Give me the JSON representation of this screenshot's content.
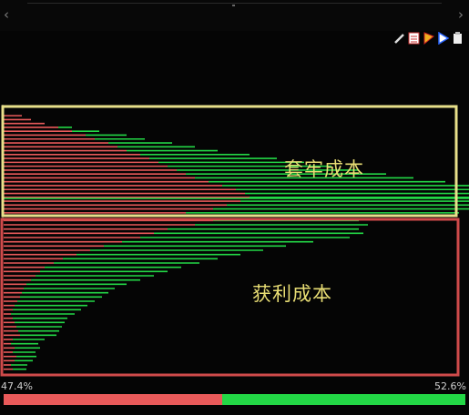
{
  "nav": {
    "back_glyph": "‹",
    "forward_glyph": "›"
  },
  "toolbar": {
    "icons": [
      "pen-icon",
      "calendar-icon",
      "flag-icon",
      "triangle-icon",
      "document-icon"
    ]
  },
  "labels": {
    "trapped": "套牢成本",
    "profit": "获利成本"
  },
  "footer": {
    "left_pct": "47.4%",
    "right_pct": "52.6%",
    "left_share": 47.4,
    "right_share": 52.6
  },
  "colors": {
    "red": "#e95a5a",
    "green": "#23d846",
    "trap_box": "#e8e08a",
    "profit_box": "#cf4a4a"
  },
  "chart_data": {
    "type": "bar",
    "orientation": "horizontal",
    "groups": [
      {
        "name": "套牢成本",
        "red": [
          20,
          30,
          45,
          60,
          75,
          90,
          100,
          115,
          125,
          135,
          150,
          160,
          170,
          180,
          190,
          200,
          210,
          225,
          240,
          255,
          265,
          270,
          260,
          245,
          230,
          200
        ],
        "green": [
          0,
          0,
          0,
          15,
          30,
          45,
          55,
          70,
          85,
          100,
          120,
          140,
          160,
          180,
          200,
          220,
          240,
          260,
          280,
          300,
          330,
          360,
          420,
          430,
          380,
          300
        ]
      },
      {
        "name": "获利成本",
        "red": [
          230,
          210,
          180,
          165,
          150,
          130,
          110,
          95,
          80,
          65,
          55,
          45,
          40,
          35,
          30,
          25,
          22,
          20,
          18,
          15,
          12,
          10,
          8,
          10,
          12,
          14,
          16,
          18,
          10,
          8,
          12,
          10,
          14,
          12,
          8,
          10
        ],
        "green": [
          160,
          190,
          210,
          230,
          230,
          210,
          200,
          190,
          180,
          170,
          160,
          150,
          140,
          130,
          120,
          110,
          100,
          95,
          90,
          85,
          80,
          75,
          70,
          60,
          55,
          50,
          45,
          40,
          35,
          30,
          28,
          25,
          22,
          20,
          18,
          15
        ]
      }
    ]
  }
}
